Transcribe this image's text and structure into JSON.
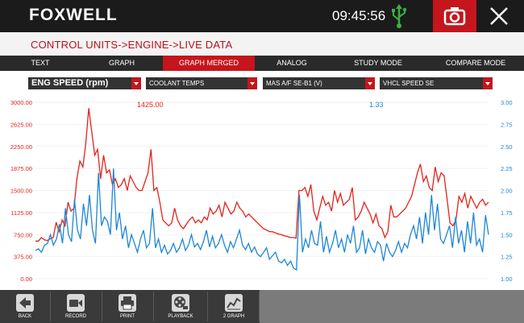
{
  "header": {
    "brand": "FOXWELL",
    "time": "09:45:56"
  },
  "breadcrumb": "CONTROL UNITS->ENGINE->LIVE DATA",
  "tabs": [
    {
      "label": "TEXT"
    },
    {
      "label": "GRAPH"
    },
    {
      "label": "GRAPH MERGED",
      "active": true
    },
    {
      "label": "ANALOG"
    },
    {
      "label": "STUDY MODE"
    },
    {
      "label": "COMPARE MODE"
    }
  ],
  "selectors": [
    {
      "value": "ENG SPEED (rpm)"
    },
    {
      "value": "COOLANT  TEMPS"
    },
    {
      "value": "MAS A/F SE-B1 (V)"
    },
    {
      "value": "VHCL  SPEED  SE"
    }
  ],
  "toolbar": [
    {
      "label": "BACK",
      "icon": "back-arrow-icon"
    },
    {
      "label": "RECORD",
      "icon": "video-camera-icon"
    },
    {
      "label": "PRINT",
      "icon": "printer-icon"
    },
    {
      "label": "PLAYBACK",
      "icon": "film-reel-icon"
    },
    {
      "label": "2 GRAPH",
      "icon": "line-graph-icon"
    }
  ],
  "colors": {
    "brand_red": "#c4161c",
    "series1": "#e2231a",
    "series2": "#1f86d6",
    "usb": "#3cb043"
  },
  "chart_data": {
    "type": "line",
    "left_axis": {
      "min": 0,
      "max": 3000,
      "ticks": [
        "0.00",
        "375.00",
        "750.00",
        "1125.00",
        "1500.00",
        "1875.00",
        "2250.00",
        "2625.00",
        "3000.00"
      ]
    },
    "right_axis": {
      "min": 1.0,
      "max": 3.0,
      "ticks": [
        "1.00",
        "1.25",
        "1.50",
        "1.75",
        "2.00",
        "2.25",
        "2.50",
        "2.75",
        "3.00"
      ]
    },
    "readouts": {
      "left": "1425.00",
      "right": "1.33"
    },
    "series": [
      {
        "axis": "left",
        "values": [
          640,
          640,
          700,
          660,
          650,
          680,
          700,
          960,
          800,
          1000,
          900,
          1300,
          1150,
          1200,
          1700,
          2000,
          1900,
          2300,
          2900,
          2500,
          2100,
          2200,
          1700,
          2100,
          1800,
          1850,
          1600,
          1700,
          1550,
          1600,
          1700,
          1500,
          1750,
          1650,
          1550,
          1500,
          1500,
          1650,
          1800,
          2200,
          1500,
          1550,
          1300,
          1000,
          950,
          900,
          950,
          1200,
          1000,
          900,
          850,
          930,
          1000,
          1050,
          950,
          1000,
          950,
          1050,
          1000,
          1200,
          1100,
          1150,
          1250,
          1050,
          1300,
          1200,
          1100,
          1150,
          1300,
          1200,
          1150,
          1050,
          1100,
          1050,
          1000,
          950,
          900,
          850,
          830,
          800,
          800,
          780,
          760,
          750,
          730,
          720,
          700,
          700,
          690,
          1500,
          1500,
          1550,
          1400,
          1600,
          1150,
          1000,
          1200,
          1400,
          1250,
          1300,
          1150,
          1500,
          1300,
          1450,
          1250,
          1300,
          1350,
          1550,
          1000,
          1050,
          1150,
          1300,
          1200,
          1100,
          950,
          1100,
          900,
          850,
          700,
          800,
          1250,
          1050,
          1050,
          1100,
          1150,
          1200,
          1300,
          1400,
          1600,
          1800,
          1950,
          1650,
          1750,
          1550,
          1500,
          1900,
          1650,
          1800,
          1750,
          1350,
          950,
          900,
          1000,
          1400,
          1300,
          1450,
          1200,
          1400,
          1300,
          1200,
          1300,
          1350,
          1250,
          1300
        ]
      },
      {
        "axis": "right",
        "values": [
          1.32,
          1.34,
          1.3,
          1.38,
          1.4,
          1.5,
          1.38,
          1.45,
          1.62,
          1.4,
          1.8,
          1.5,
          1.42,
          1.9,
          1.55,
          1.45,
          1.85,
          1.6,
          1.95,
          1.55,
          1.4,
          2.2,
          1.6,
          1.7,
          1.65,
          1.5,
          2.25,
          1.55,
          1.75,
          1.45,
          1.6,
          1.35,
          1.5,
          1.4,
          1.3,
          1.45,
          1.55,
          1.35,
          1.4,
          1.8,
          1.35,
          1.45,
          1.3,
          1.38,
          1.28,
          1.32,
          1.4,
          1.3,
          1.35,
          1.45,
          1.32,
          1.38,
          1.5,
          1.36,
          1.4,
          1.33,
          1.42,
          1.55,
          1.36,
          1.48,
          1.35,
          1.4,
          1.5,
          1.38,
          1.3,
          1.42,
          1.35,
          1.45,
          1.55,
          1.38,
          1.33,
          1.4,
          1.3,
          1.36,
          1.28,
          1.25,
          1.3,
          1.35,
          1.22,
          1.26,
          1.3,
          1.2,
          1.18,
          1.22,
          1.15,
          1.2,
          1.12,
          1.1,
          1.95,
          1.3,
          1.45,
          1.35,
          1.55,
          1.4,
          1.38,
          1.65,
          1.3,
          1.48,
          1.3,
          1.4,
          1.55,
          1.35,
          1.45,
          1.3,
          1.5,
          1.4,
          1.6,
          1.3,
          1.35,
          1.55,
          1.28,
          1.45,
          1.35,
          1.3,
          1.42,
          1.38,
          1.2,
          1.4,
          1.3,
          1.25,
          1.32,
          1.42,
          1.3,
          1.4,
          1.35,
          1.5,
          1.6,
          1.45,
          1.7,
          1.4,
          1.75,
          1.5,
          1.95,
          1.55,
          1.85,
          1.45,
          1.4,
          1.5,
          1.6,
          1.35,
          1.7,
          1.4,
          1.55,
          1.3,
          1.65,
          1.4,
          1.75,
          1.38,
          1.45,
          1.3,
          1.72,
          1.5
        ]
      }
    ]
  }
}
